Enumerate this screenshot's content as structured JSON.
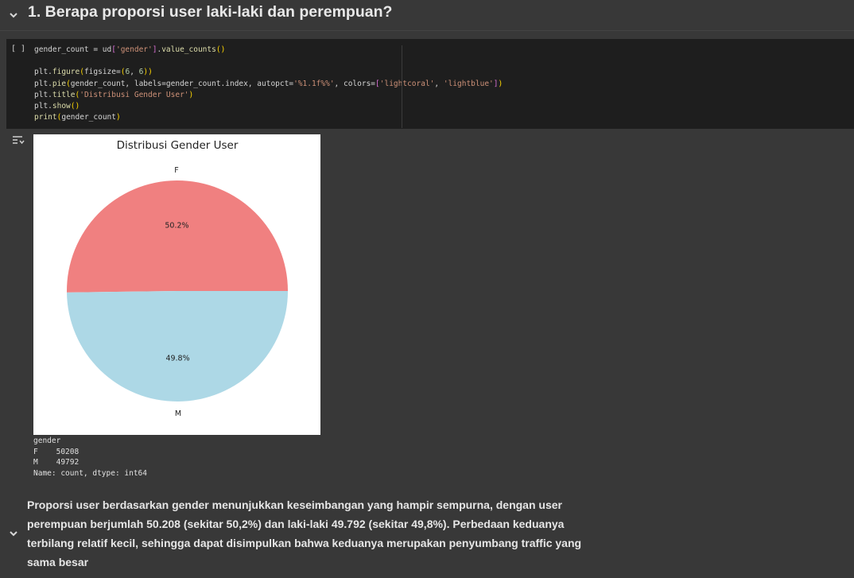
{
  "section": {
    "title": "1. Berapa proporsi user laki-laki dan perempuan?",
    "collapse_icon": "chevron-down-icon"
  },
  "code_cell": {
    "run_label": "[ ]",
    "lines": [
      "gender_count = ud['gender'].value_counts()",
      "",
      "plt.figure(figsize=(6, 6))",
      "plt.pie(gender_count, labels=gender_count.index, autopct='%1.1f%%', colors=['lightcoral', 'lightblue'])",
      "plt.title('Distribusi Gender User')",
      "plt.show()",
      "print(gender_count)"
    ]
  },
  "output": {
    "icon": "output-toggle-icon",
    "text_lines": [
      "gender",
      "F    50208",
      "M    49792",
      "Name: count, dtype: int64"
    ]
  },
  "chart_data": {
    "type": "pie",
    "title": "Distribusi Gender User",
    "categories": [
      "F",
      "M"
    ],
    "values": [
      50208,
      49792
    ],
    "data_labels": [
      "50.2%",
      "49.8%"
    ],
    "colors": [
      "#f08080",
      "#add8e6"
    ]
  },
  "markdown": {
    "text": "Proporsi user berdasarkan gender menunjukkan keseimbangan yang hampir sempurna, dengan user perempuan berjumlah 50.208 (sekitar 50,2%) dan laki-laki 49.792 (sekitar 49,8%). Perbedaan keduanya terbilang relatif kecil, sehingga dapat disimpulkan bahwa keduanya merupakan penyumbang traffic yang sama besar",
    "collapse_icon": "chevron-down-icon"
  }
}
